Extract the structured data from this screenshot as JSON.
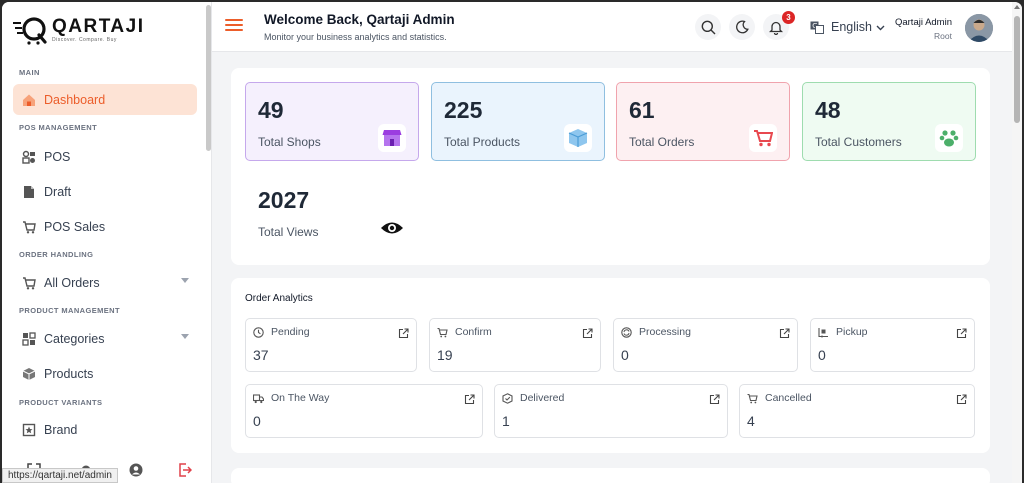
{
  "brand": {
    "name": "QARTAJI",
    "tagline": "Discover. Compare. Buy"
  },
  "sidebar": {
    "sections": [
      {
        "label": "MAIN",
        "items": [
          {
            "label": "Dashboard",
            "icon": "home-icon",
            "active": true
          }
        ]
      },
      {
        "label": "POS MANAGEMENT",
        "items": [
          {
            "label": "POS",
            "icon": "pos-icon"
          },
          {
            "label": "Draft",
            "icon": "draft-icon"
          },
          {
            "label": "POS Sales",
            "icon": "cart-icon"
          }
        ]
      },
      {
        "label": "ORDER HANDLING",
        "items": [
          {
            "label": "All Orders",
            "icon": "cart-icon",
            "expandable": true
          }
        ]
      },
      {
        "label": "PRODUCT MANAGEMENT",
        "items": [
          {
            "label": "Categories",
            "icon": "grid-icon",
            "expandable": true
          },
          {
            "label": "Products",
            "icon": "box-icon"
          }
        ]
      },
      {
        "label": "PRODUCT VARIANTS",
        "items": [
          {
            "label": "Brand",
            "icon": "star-tag-icon"
          }
        ]
      }
    ]
  },
  "status_bar": {
    "url": "https://qartaji.net/admin"
  },
  "header": {
    "welcome": "Welcome Back, Qartaji Admin",
    "subtitle": "Monitor your business analytics and statistics.",
    "notification_count": "3",
    "language": "English",
    "user": {
      "name": "Qartaji Admin",
      "role": "Root"
    }
  },
  "stats": [
    {
      "value": "49",
      "label": "Total Shops",
      "icon": "shop-icon",
      "bg": "#f5f0fd",
      "border": "#c5a8ec"
    },
    {
      "value": "225",
      "label": "Total Products",
      "icon": "box-icon",
      "bg": "#eaf4fd",
      "border": "#8fbfe0"
    },
    {
      "value": "61",
      "label": "Total Orders",
      "icon": "cart-icon",
      "bg": "#fdf0f2",
      "border": "#f0a3ad"
    },
    {
      "value": "48",
      "label": "Total Customers",
      "icon": "paw-icon",
      "bg": "#effbf2",
      "border": "#9edcaf"
    },
    {
      "value": "2027",
      "label": "Total Views",
      "icon": "eye-icon",
      "bg": "#ffffff",
      "border": "#ffffff"
    }
  ],
  "order_analytics": {
    "title": "Order Analytics",
    "statuses": [
      {
        "label": "Pending",
        "value": "37",
        "icon": "clock-icon"
      },
      {
        "label": "Confirm",
        "value": "19",
        "icon": "cart-icon"
      },
      {
        "label": "Processing",
        "value": "0",
        "icon": "refresh-icon"
      },
      {
        "label": "Pickup",
        "value": "0",
        "icon": "pickup-icon"
      },
      {
        "label": "On The Way",
        "value": "0",
        "icon": "truck-icon"
      },
      {
        "label": "Delivered",
        "value": "1",
        "icon": "delivered-icon"
      },
      {
        "label": "Cancelled",
        "value": "4",
        "icon": "cart-cancel-icon"
      }
    ]
  }
}
